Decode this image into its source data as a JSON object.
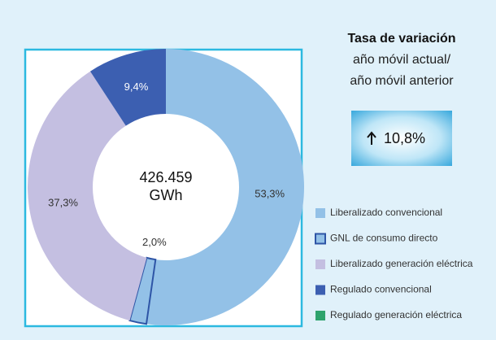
{
  "chart_data": {
    "type": "donut",
    "center_label": [
      "426.459",
      "GWh"
    ],
    "categories": [
      "Liberalizado convencional",
      "GNL de consumo directo",
      "Liberalizado generación eléctrica",
      "Regulado convencional",
      "Regulado generación eléctrica"
    ],
    "values": [
      53.3,
      2.0,
      37.3,
      9.4,
      0
    ],
    "value_labels": [
      "53,3%",
      "2,0%",
      "37,3%",
      "9,4%",
      null
    ],
    "colors": [
      "#93c1e7",
      "#93c1e7",
      "#c4bfe1",
      "#3c5fb1",
      "#2ea36d"
    ],
    "outlined": [
      false,
      true,
      false,
      false,
      false
    ],
    "legend": "right"
  },
  "side_panel": {
    "title": "Tasa de variación",
    "lines": [
      "año móvil actual/",
      "año móvil anterior"
    ],
    "rate": "10,8%"
  }
}
